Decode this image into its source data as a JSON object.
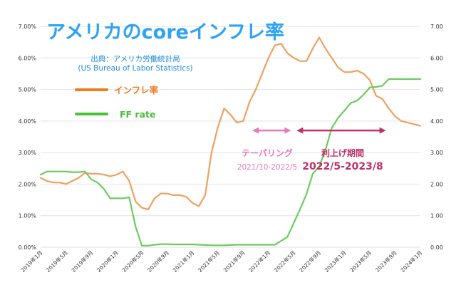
{
  "colors": {
    "inflation": "#F0A060",
    "ff_rate": "#6CCB5F",
    "title": "#2FA3F2",
    "source": "#1E8CE0",
    "legend_inflation": "#F07C20",
    "legend_ff": "#4CBF3A",
    "taper": "#E47AB6",
    "hike": "#C0306A",
    "grid": "#E2E2E2",
    "axis_text": "#333333"
  },
  "chart_data": {
    "type": "line",
    "title": "アメリカのcoreインフレ率",
    "source_line1": "出典：アメリカ労働統計局",
    "source_line2": "(US Bureau of Labor Statistics)",
    "xlabel": "",
    "ylabel": "",
    "ylim": [
      0,
      7
    ],
    "y_ticks_left": [
      "0.00%",
      "1.00%",
      "2.00%",
      "3.00%",
      "4.00%",
      "5.00%",
      "6.00%",
      "7.00%"
    ],
    "y_ticks_right": [
      "0.00",
      "1.00",
      "2.00",
      "3.00",
      "4.00",
      "5.00",
      "6.00",
      "7.00"
    ],
    "x_ticks": [
      {
        "label": "2019年1月",
        "index": 0
      },
      {
        "label": "2019年5月",
        "index": 4
      },
      {
        "label": "2019年9月",
        "index": 8
      },
      {
        "label": "2020年1月",
        "index": 12
      },
      {
        "label": "2020年5月",
        "index": 16
      },
      {
        "label": "2020年9月",
        "index": 20
      },
      {
        "label": "2021年1月",
        "index": 24
      },
      {
        "label": "2021年5月",
        "index": 28
      },
      {
        "label": "2021年9月",
        "index": 32
      },
      {
        "label": "2022年1月",
        "index": 36
      },
      {
        "label": "2022年5月",
        "index": 40
      },
      {
        "label": "2022年9月",
        "index": 44
      },
      {
        "label": "2023年1月",
        "index": 48
      },
      {
        "label": "2023年5月",
        "index": 52
      },
      {
        "label": "2023年9月",
        "index": 56
      },
      {
        "label": "2024年1月",
        "index": 60
      }
    ],
    "legend": [
      {
        "name": "インフレ率",
        "key": "inflation"
      },
      {
        "name": "FF rate",
        "key": "ff_rate"
      }
    ],
    "series": [
      {
        "name": "インフレ率",
        "key": "inflation",
        "values": [
          2.2,
          2.1,
          2.05,
          2.05,
          2.0,
          2.1,
          2.2,
          2.35,
          2.33,
          2.33,
          2.3,
          2.25,
          2.3,
          2.4,
          2.1,
          1.45,
          1.25,
          1.2,
          1.55,
          1.7,
          1.7,
          1.65,
          1.65,
          1.6,
          1.4,
          1.3,
          1.65,
          3.0,
          3.8,
          4.4,
          4.2,
          3.95,
          4.0,
          4.6,
          5.0,
          5.5,
          6.0,
          6.4,
          6.45,
          6.15,
          6.0,
          5.9,
          5.9,
          6.3,
          6.65,
          6.3,
          6.0,
          5.7,
          5.55,
          5.55,
          5.6,
          5.5,
          5.3,
          4.8,
          4.7,
          4.4,
          4.15,
          4.0,
          3.95,
          3.9,
          3.85
        ]
      },
      {
        "name": "FF rate",
        "key": "ff_rate",
        "values": [
          2.3,
          2.4,
          2.4,
          2.4,
          2.4,
          2.38,
          2.38,
          2.4,
          2.15,
          2.05,
          1.85,
          1.55,
          1.55,
          1.55,
          1.58,
          0.65,
          0.05,
          0.05,
          0.08,
          0.1,
          0.1,
          0.09,
          0.09,
          0.09,
          0.09,
          0.08,
          0.07,
          0.06,
          0.06,
          0.06,
          0.07,
          0.08,
          0.08,
          0.08,
          0.08,
          0.08,
          0.08,
          0.08,
          0.2,
          0.33,
          0.77,
          1.21,
          1.68,
          2.33,
          2.56,
          3.08,
          3.78,
          4.1,
          4.33,
          4.57,
          4.65,
          4.83,
          5.06,
          5.08,
          5.12,
          5.33,
          5.33,
          5.33,
          5.33,
          5.33,
          5.33
        ]
      }
    ],
    "annotations": [
      {
        "key": "taper",
        "label": "テーパリング",
        "range": "2021/10-2022/5",
        "start_index": 33,
        "end_index": 40,
        "arrow_y": 3.7
      },
      {
        "key": "hike",
        "label": "利上げ期間",
        "range": "2022/5-2023/8",
        "start_index": 40,
        "end_index": 55,
        "arrow_y": 3.7
      }
    ]
  }
}
